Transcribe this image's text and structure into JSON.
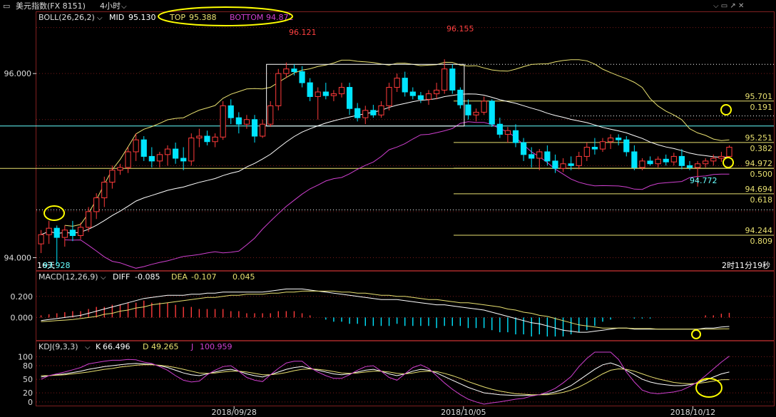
{
  "header": {
    "symbol": "美元指数(FX 8151)",
    "period": "4小时"
  },
  "colors": {
    "background": "#000000",
    "up": "#ff3b3b",
    "down": "#00e5ff",
    "boll_mid": "#ffffff",
    "boll_top": "#e8e070",
    "boll_bottom": "#d040d0",
    "fib_line": "#e8e070",
    "cyan_line": "#66ffff",
    "annot": "#ffff00"
  },
  "chart_data": [
    {
      "type": "candlestick",
      "panel": "main",
      "indicator_label": "BOLL(26,26,2)",
      "mid_label": "MID",
      "mid_value": "95.130",
      "top_label": "TOP",
      "top_value": "95.388",
      "bottom_label": "BOTTOM",
      "bottom_value": "94.872",
      "y_ticks": [
        "96.000",
        "94.000"
      ],
      "ylim": [
        93.88,
        96.52
      ],
      "high_label": "96.121",
      "high2_label": "96.155",
      "low_label": "93.928",
      "low_prefix": "16天",
      "recent_low_label": "94.772",
      "countdown": "2时11分19秒",
      "x_labels": [
        "2018/09/28",
        "2018/10/05",
        "2018/10/12"
      ],
      "fib_levels": [
        {
          "price": 95.701,
          "price_label": "95.701",
          "ratio_label": "0.191"
        },
        {
          "price": 95.251,
          "price_label": "95.251",
          "ratio_label": "0.382"
        },
        {
          "price": 94.972,
          "price_label": "94.972",
          "ratio_label": "0.500"
        },
        {
          "price": 94.694,
          "price_label": "94.694",
          "ratio_label": "0.618"
        },
        {
          "price": 94.244,
          "price_label": "94.244",
          "ratio_label": "0.809"
        }
      ],
      "horizontal_lines": [
        95.43,
        94.97,
        94.52
      ],
      "candles": [
        [
          94.15,
          94.3,
          94.05,
          94.25
        ],
        [
          94.25,
          94.4,
          94.15,
          94.32
        ],
        [
          94.32,
          94.35,
          93.93,
          94.22
        ],
        [
          94.22,
          94.35,
          94.12,
          94.3
        ],
        [
          94.3,
          94.4,
          94.18,
          94.24
        ],
        [
          94.24,
          94.38,
          94.2,
          94.33
        ],
        [
          94.33,
          94.55,
          94.28,
          94.5
        ],
        [
          94.5,
          94.7,
          94.42,
          94.65
        ],
        [
          94.65,
          94.88,
          94.55,
          94.82
        ],
        [
          94.82,
          95.0,
          94.75,
          94.95
        ],
        [
          94.95,
          95.02,
          94.9,
          94.98
        ],
        [
          94.98,
          95.2,
          94.92,
          95.15
        ],
        [
          95.15,
          95.35,
          95.05,
          95.28
        ],
        [
          95.28,
          95.32,
          95.05,
          95.1
        ],
        [
          95.1,
          95.2,
          94.98,
          95.05
        ],
        [
          95.05,
          95.15,
          94.98,
          95.12
        ],
        [
          95.12,
          95.22,
          95.0,
          95.18
        ],
        [
          95.18,
          95.25,
          95.02,
          95.08
        ],
        [
          95.08,
          95.2,
          94.95,
          95.05
        ],
        [
          95.05,
          95.35,
          95.0,
          95.3
        ],
        [
          95.3,
          95.4,
          95.2,
          95.32
        ],
        [
          95.32,
          95.38,
          95.22,
          95.26
        ],
        [
          95.26,
          95.35,
          95.2,
          95.31
        ],
        [
          95.31,
          95.7,
          95.28,
          95.65
        ],
        [
          95.65,
          95.72,
          95.45,
          95.52
        ],
        [
          95.52,
          95.58,
          95.35,
          95.45
        ],
        [
          95.45,
          95.55,
          95.4,
          95.5
        ],
        [
          95.5,
          95.55,
          95.25,
          95.32
        ],
        [
          95.32,
          95.5,
          95.3,
          95.45
        ],
        [
          95.45,
          95.7,
          95.42,
          95.65
        ],
        [
          95.65,
          96.05,
          95.6,
          96.0
        ],
        [
          96.0,
          96.12,
          95.95,
          96.05
        ],
        [
          96.05,
          96.1,
          95.98,
          96.02
        ],
        [
          96.02,
          96.08,
          95.85,
          95.9
        ],
        [
          95.9,
          95.95,
          95.7,
          95.75
        ],
        [
          95.75,
          95.85,
          95.5,
          95.8
        ],
        [
          95.8,
          95.9,
          95.72,
          95.76
        ],
        [
          95.76,
          95.82,
          95.7,
          95.78
        ],
        [
          95.78,
          95.9,
          95.74,
          95.85
        ],
        [
          95.85,
          95.9,
          95.55,
          95.62
        ],
        [
          95.62,
          95.68,
          95.48,
          95.52
        ],
        [
          95.52,
          95.65,
          95.45,
          95.6
        ],
        [
          95.6,
          95.66,
          95.52,
          95.55
        ],
        [
          95.55,
          95.7,
          95.52,
          95.65
        ],
        [
          95.65,
          95.9,
          95.6,
          95.85
        ],
        [
          95.85,
          96.0,
          95.8,
          95.95
        ],
        [
          95.95,
          96.02,
          95.75,
          95.8
        ],
        [
          95.8,
          95.85,
          95.72,
          95.76
        ],
        [
          95.76,
          95.8,
          95.68,
          95.72
        ],
        [
          95.72,
          95.82,
          95.66,
          95.78
        ],
        [
          95.78,
          95.9,
          95.72,
          95.82
        ],
        [
          95.82,
          96.155,
          95.78,
          96.05
        ],
        [
          96.05,
          96.1,
          95.78,
          95.82
        ],
        [
          95.82,
          95.85,
          95.62,
          95.66
        ],
        [
          95.66,
          95.72,
          95.5,
          95.55
        ],
        [
          95.55,
          95.62,
          95.48,
          95.58
        ],
        [
          95.58,
          95.75,
          95.55,
          95.7
        ],
        [
          95.7,
          95.72,
          95.42,
          95.45
        ],
        [
          95.45,
          95.52,
          95.3,
          95.34
        ],
        [
          95.34,
          95.42,
          95.25,
          95.38
        ],
        [
          95.38,
          95.45,
          95.2,
          95.25
        ],
        [
          95.25,
          95.3,
          95.05,
          95.12
        ],
        [
          95.12,
          95.2,
          94.98,
          95.08
        ],
        [
          95.08,
          95.18,
          94.95,
          95.15
        ],
        [
          95.15,
          95.22,
          95.0,
          95.05
        ],
        [
          95.05,
          95.12,
          94.92,
          94.97
        ],
        [
          94.97,
          95.08,
          94.93,
          95.02
        ],
        [
          95.02,
          95.1,
          94.95,
          95.0
        ],
        [
          95.0,
          95.15,
          94.96,
          95.1
        ],
        [
          95.1,
          95.25,
          95.05,
          95.2
        ],
        [
          95.2,
          95.3,
          95.12,
          95.18
        ],
        [
          95.18,
          95.3,
          95.15,
          95.26
        ],
        [
          95.26,
          95.34,
          95.18,
          95.3
        ],
        [
          95.3,
          95.34,
          95.22,
          95.28
        ],
        [
          95.28,
          95.32,
          95.1,
          95.15
        ],
        [
          95.15,
          95.22,
          94.95,
          94.98
        ],
        [
          94.98,
          95.08,
          94.95,
          95.05
        ],
        [
          95.05,
          95.1,
          95.0,
          95.02
        ],
        [
          95.02,
          95.1,
          94.98,
          95.07
        ],
        [
          95.07,
          95.12,
          95.0,
          95.04
        ],
        [
          95.04,
          95.14,
          95.0,
          95.1
        ],
        [
          95.1,
          95.18,
          94.96,
          95.0
        ],
        [
          95.0,
          95.05,
          94.95,
          94.98
        ],
        [
          94.98,
          95.05,
          94.772,
          95.02
        ],
        [
          95.02,
          95.08,
          94.98,
          95.05
        ],
        [
          95.05,
          95.12,
          95.0,
          95.08
        ],
        [
          95.08,
          95.15,
          95.04,
          95.1
        ],
        [
          95.1,
          95.22,
          95.08,
          95.2
        ]
      ],
      "annotation_box": {
        "from_index": 29,
        "to_index": 53,
        "low": 95.43,
        "high": 96.1
      }
    },
    {
      "type": "line",
      "panel": "macd",
      "label": "MACD(12,26,9)",
      "diff_label": "DIFF",
      "diff_value": "-0.085",
      "dea_label": "DEA",
      "dea_value": "-0.107",
      "macd_value": "0.045",
      "y_ticks": [
        "0.200",
        "0.000"
      ],
      "ylim": [
        -0.2,
        0.32
      ],
      "diff": [
        -0.03,
        -0.02,
        -0.01,
        0.0,
        0.01,
        0.02,
        0.04,
        0.06,
        0.08,
        0.1,
        0.12,
        0.14,
        0.16,
        0.18,
        0.19,
        0.2,
        0.21,
        0.21,
        0.21,
        0.22,
        0.22,
        0.23,
        0.23,
        0.24,
        0.24,
        0.24,
        0.24,
        0.24,
        0.24,
        0.25,
        0.26,
        0.27,
        0.27,
        0.27,
        0.26,
        0.25,
        0.24,
        0.23,
        0.22,
        0.21,
        0.2,
        0.19,
        0.18,
        0.17,
        0.17,
        0.17,
        0.16,
        0.15,
        0.14,
        0.13,
        0.12,
        0.12,
        0.11,
        0.1,
        0.09,
        0.08,
        0.07,
        0.05,
        0.03,
        0.01,
        -0.01,
        -0.03,
        -0.05,
        -0.06,
        -0.08,
        -0.1,
        -0.12,
        -0.13,
        -0.14,
        -0.14,
        -0.13,
        -0.12,
        -0.11,
        -0.1,
        -0.1,
        -0.11,
        -0.11,
        -0.11,
        -0.11,
        -0.11,
        -0.11,
        -0.11,
        -0.11,
        -0.11,
        -0.1,
        -0.1,
        -0.09,
        -0.085
      ],
      "dea": [
        -0.04,
        -0.035,
        -0.03,
        -0.025,
        -0.02,
        -0.01,
        0.0,
        0.01,
        0.03,
        0.04,
        0.06,
        0.07,
        0.09,
        0.1,
        0.12,
        0.13,
        0.14,
        0.15,
        0.16,
        0.17,
        0.18,
        0.19,
        0.19,
        0.2,
        0.21,
        0.21,
        0.22,
        0.22,
        0.22,
        0.23,
        0.23,
        0.24,
        0.24,
        0.25,
        0.25,
        0.25,
        0.25,
        0.25,
        0.24,
        0.24,
        0.23,
        0.23,
        0.22,
        0.21,
        0.21,
        0.2,
        0.2,
        0.19,
        0.18,
        0.17,
        0.17,
        0.16,
        0.15,
        0.14,
        0.14,
        0.13,
        0.12,
        0.11,
        0.1,
        0.08,
        0.07,
        0.05,
        0.04,
        0.02,
        0.01,
        -0.01,
        -0.03,
        -0.05,
        -0.07,
        -0.08,
        -0.09,
        -0.1,
        -0.1,
        -0.1,
        -0.1,
        -0.105,
        -0.105,
        -0.105,
        -0.11,
        -0.11,
        -0.11,
        -0.11,
        -0.11,
        -0.11,
        -0.11,
        -0.11,
        -0.108,
        -0.107
      ]
    },
    {
      "type": "line",
      "panel": "kdj",
      "label": "KDJ(9,3,3)",
      "k_label": "K",
      "k_value": "66.496",
      "d_label": "D",
      "d_value": "49.265",
      "j_label": "J",
      "j_value": "100.959",
      "y_ticks": [
        "100",
        "80",
        "50",
        "20",
        "0"
      ],
      "ylim": [
        -5,
        110
      ],
      "k": [
        55,
        58,
        60,
        62,
        65,
        68,
        72,
        75,
        78,
        80,
        82,
        84,
        85,
        84,
        83,
        80,
        76,
        70,
        64,
        60,
        58,
        62,
        66,
        70,
        72,
        68,
        62,
        58,
        55,
        60,
        66,
        72,
        76,
        78,
        74,
        70,
        66,
        62,
        60,
        62,
        66,
        70,
        72,
        68,
        62,
        58,
        62,
        68,
        72,
        70,
        64,
        56,
        48,
        40,
        32,
        26,
        20,
        18,
        16,
        15,
        14,
        14,
        15,
        16,
        18,
        22,
        28,
        36,
        48,
        60,
        72,
        82,
        86,
        80,
        70,
        60,
        50,
        44,
        40,
        38,
        36,
        36,
        38,
        42,
        48,
        55,
        62,
        66
      ],
      "d": [
        58,
        58,
        59,
        60,
        62,
        64,
        66,
        69,
        72,
        74,
        77,
        79,
        81,
        82,
        82,
        81,
        79,
        76,
        72,
        68,
        64,
        63,
        64,
        66,
        68,
        68,
        66,
        63,
        60,
        60,
        62,
        65,
        69,
        72,
        73,
        72,
        70,
        67,
        64,
        63,
        64,
        66,
        68,
        68,
        66,
        63,
        62,
        64,
        67,
        68,
        67,
        63,
        58,
        52,
        45,
        39,
        33,
        28,
        24,
        21,
        18,
        17,
        16,
        16,
        16,
        18,
        21,
        26,
        33,
        42,
        52,
        62,
        70,
        73,
        72,
        68,
        62,
        56,
        51,
        47,
        43,
        41,
        40,
        41,
        43,
        46,
        49,
        49.265
      ],
      "j": [
        50,
        58,
        62,
        66,
        71,
        76,
        84,
        87,
        90,
        92,
        92,
        94,
        93,
        88,
        85,
        78,
        70,
        58,
        48,
        44,
        46,
        60,
        70,
        78,
        80,
        68,
        54,
        48,
        45,
        60,
        74,
        86,
        90,
        90,
        76,
        66,
        58,
        52,
        52,
        60,
        70,
        78,
        80,
        68,
        54,
        48,
        62,
        76,
        82,
        74,
        58,
        42,
        28,
        16,
        6,
        0,
        -5,
        -2,
        0,
        3,
        6,
        8,
        13,
        16,
        22,
        30,
        42,
        56,
        78,
        96,
        112,
        122,
        118,
        94,
        66,
        44,
        26,
        20,
        18,
        20,
        22,
        26,
        34,
        44,
        58,
        73,
        88,
        100.959
      ]
    }
  ]
}
